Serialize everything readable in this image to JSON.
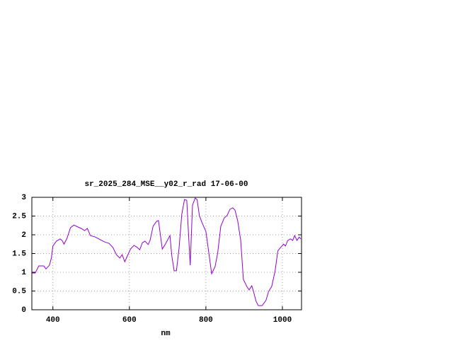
{
  "chart_data": {
    "type": "line",
    "title": "sr_2025_284_MSE__y02_r_rad 17-06-00",
    "x_label": "nm",
    "x": [
      345,
      354,
      363,
      376,
      382,
      391,
      396,
      400,
      409,
      419,
      424,
      429,
      437,
      446,
      455,
      465,
      474,
      483,
      490,
      498,
      511,
      520,
      535,
      547,
      557,
      566,
      575,
      581,
      588,
      594,
      603,
      612,
      621,
      627,
      634,
      641,
      649,
      654,
      662,
      671,
      676,
      686,
      694,
      706,
      711,
      717,
      723,
      730,
      737,
      744,
      750,
      755,
      759,
      765,
      772,
      777,
      783,
      790,
      800,
      807,
      815,
      824,
      831,
      839,
      848,
      855,
      863,
      870,
      876,
      883,
      891,
      898,
      907,
      913,
      920,
      925,
      931,
      937,
      947,
      957,
      964,
      972,
      981,
      988,
      995,
      1003,
      1008,
      1014,
      1021,
      1027,
      1032,
      1038,
      1044,
      1048
    ],
    "series": [
      {
        "color": "#9400d3",
        "values": [
          0.98,
          0.98,
          1.17,
          1.17,
          1.09,
          1.19,
          1.38,
          1.7,
          1.83,
          1.89,
          1.85,
          1.75,
          1.91,
          2.19,
          2.26,
          2.21,
          2.17,
          2.11,
          2.17,
          1.98,
          1.94,
          1.89,
          1.81,
          1.77,
          1.66,
          1.47,
          1.38,
          1.47,
          1.28,
          1.42,
          1.62,
          1.72,
          1.66,
          1.6,
          1.79,
          1.83,
          1.74,
          1.85,
          2.23,
          2.36,
          2.38,
          1.62,
          1.75,
          1.98,
          1.43,
          1.04,
          1.04,
          1.66,
          2.55,
          2.94,
          2.92,
          1.94,
          1.19,
          2.79,
          2.98,
          2.94,
          2.51,
          2.32,
          2.09,
          1.57,
          0.96,
          1.15,
          1.53,
          2.23,
          2.45,
          2.51,
          2.68,
          2.72,
          2.66,
          2.38,
          1.85,
          0.81,
          0.62,
          0.53,
          0.64,
          0.47,
          0.23,
          0.11,
          0.11,
          0.25,
          0.49,
          0.62,
          1.04,
          1.57,
          1.66,
          1.75,
          1.7,
          1.85,
          1.89,
          1.85,
          1.98,
          1.85,
          1.94,
          1.89
        ]
      }
    ],
    "xlim": [
      345,
      1050
    ],
    "ylim": [
      0,
      3
    ],
    "xticks": [
      400,
      600,
      800,
      1000
    ],
    "yticks": [
      0,
      0.5,
      1,
      1.5,
      2,
      2.5,
      3
    ],
    "grid": true
  }
}
